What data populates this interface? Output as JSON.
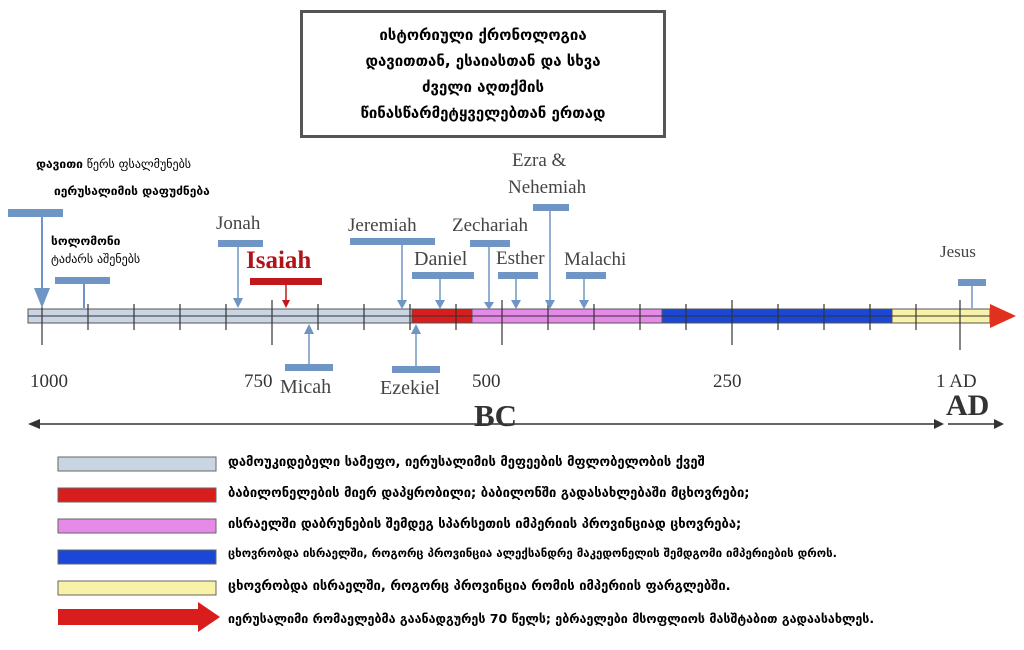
{
  "title": {
    "lines": [
      "ისტორიული ქრონოლოგია",
      "დავითთან, ესაიასთან და სხვა",
      "ძველი აღთქმის",
      "წინასწარმეტყველებთან ერთად"
    ]
  },
  "notes": {
    "david_bold": "დავითი",
    "david_rest": " წერს ფსალმუნებს",
    "jerusalem_conquest": "იერუსალიმის დაფუძნება",
    "solomon_bold": "სოლომონი",
    "solomon_rest": "ტაძარს აშენებს"
  },
  "prophets": {
    "jonah": "Jonah",
    "isaiah": "Isaiah",
    "micah": "Micah",
    "jeremiah": "Jeremiah",
    "ezekiel": "Ezekiel",
    "daniel": "Daniel",
    "zechariah": "Zechariah",
    "esther": "Esther",
    "ezra_line1": "Ezra &",
    "ezra_line2": "Nehemiah",
    "malachi": "Malachi",
    "jesus": "Jesus"
  },
  "axis": {
    "ticks": [
      "1000",
      "750",
      "500",
      "250",
      "1 AD"
    ],
    "bc_label": "BC",
    "ad_label": "AD"
  },
  "colors": {
    "independent": "#c9d5e3",
    "babylon": "#d91c1c",
    "persia": "#e58ae8",
    "greece": "#1a47d6",
    "rome": "#f7f2a8",
    "marker": "#6f95c4",
    "isaiah": "#c0181c"
  },
  "legend": [
    {
      "color": "#c9d5e3",
      "text": "დამოუკიდებელი სამეფო, იერუსალიმის მეფეების მფლობელობის ქვეშ"
    },
    {
      "color": "#d91c1c",
      "text": "ბაბილონელების მიერ დაპყრობილი; ბაბილონში გადასახლებაში მცხოვრები;"
    },
    {
      "color": "#e58ae8",
      "text": "ისრაელში დაბრუნების შემდეგ სპარსეთის იმპერიის პროვინციად ცხოვრება;"
    },
    {
      "color": "#1a47d6",
      "text": "ცხოვრობდა ისრაელში, როგორც პროვინცია ალექსანდრე მაკედონელის შემდგომი იმპერიების დროს."
    },
    {
      "color": "#f7f2a8",
      "text": "ცხოვრობდა ისრაელში, როგორც პროვინცია რომის იმპერიის ფარგლებში."
    },
    {
      "color": "#d91c1c",
      "text": "იერუსალიმი რომაელებმა გაანადგურეს 70 წელს; ებრაელები მსოფლიოს მასშტაბით გადაასახლეს."
    }
  ]
}
